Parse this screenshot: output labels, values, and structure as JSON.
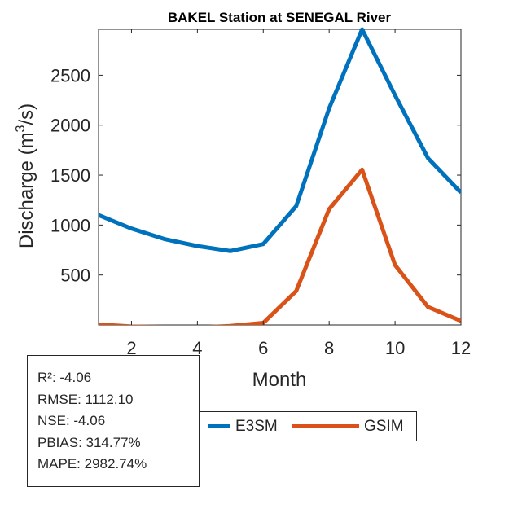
{
  "chart_data": {
    "type": "line",
    "title": "BAKEL  Station at  SENEGAL  River",
    "xlabel": "Month",
    "ylabel_prefix": "Discharge (m",
    "ylabel_sup": "3",
    "ylabel_suffix": "/s)",
    "xlim": [
      1,
      12
    ],
    "ylim": [
      0,
      2960
    ],
    "xticks": [
      2,
      4,
      6,
      8,
      10,
      12
    ],
    "yticks": [
      500,
      1000,
      1500,
      2000,
      2500
    ],
    "x": [
      1,
      2,
      3,
      4,
      5,
      6,
      7,
      8,
      9,
      10,
      11,
      12
    ],
    "series": [
      {
        "name": "E3SM",
        "color": "#0072BD",
        "values": [
          1100,
          965,
          860,
          790,
          740,
          810,
          1190,
          2170,
          2960,
          2300,
          1670,
          1325
        ]
      },
      {
        "name": "GSIM",
        "color": "#D95319",
        "values": [
          5,
          -15,
          -20,
          -25,
          -10,
          20,
          340,
          1160,
          1555,
          600,
          180,
          40
        ]
      }
    ]
  },
  "stats": {
    "r2": "R²: -4.06",
    "rmse": "RMSE: 1112.10",
    "nse": "NSE: -4.06",
    "pbias": "PBIAS: 314.77%",
    "mape": "MAPE: 2982.74%"
  },
  "legend": {
    "e3sm_label": "E3SM",
    "gsim_label": "GSIM",
    "e3sm_color": "#0072BD",
    "gsim_color": "#D95319"
  }
}
